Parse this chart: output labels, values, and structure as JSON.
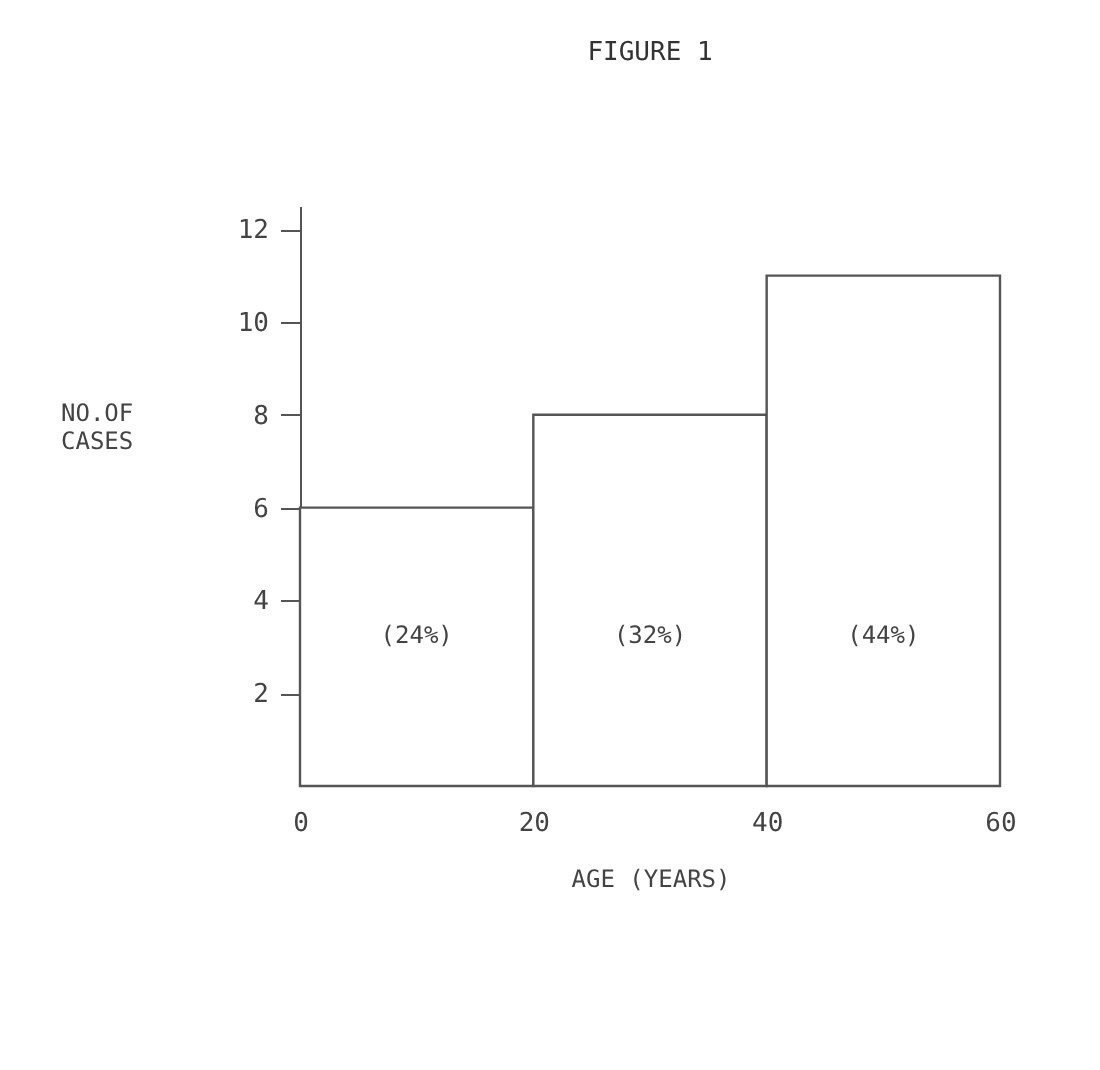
{
  "chart_data": {
    "type": "histogram",
    "title": "FIGURE 1",
    "xlabel": "AGE (YEARS)",
    "ylabel": "NO.OF CASES",
    "bins": [
      0,
      20,
      40,
      60
    ],
    "values": [
      6,
      8,
      11
    ],
    "color": "#555555",
    "annotations": [
      "(24%)",
      "(32%)",
      "(44%)"
    ],
    "xlim": [
      0,
      60
    ],
    "xticks": [
      0,
      20,
      40,
      60
    ],
    "ylim": [
      0,
      12.5
    ],
    "yticks": [
      2,
      4,
      6,
      8,
      10,
      12
    ]
  }
}
